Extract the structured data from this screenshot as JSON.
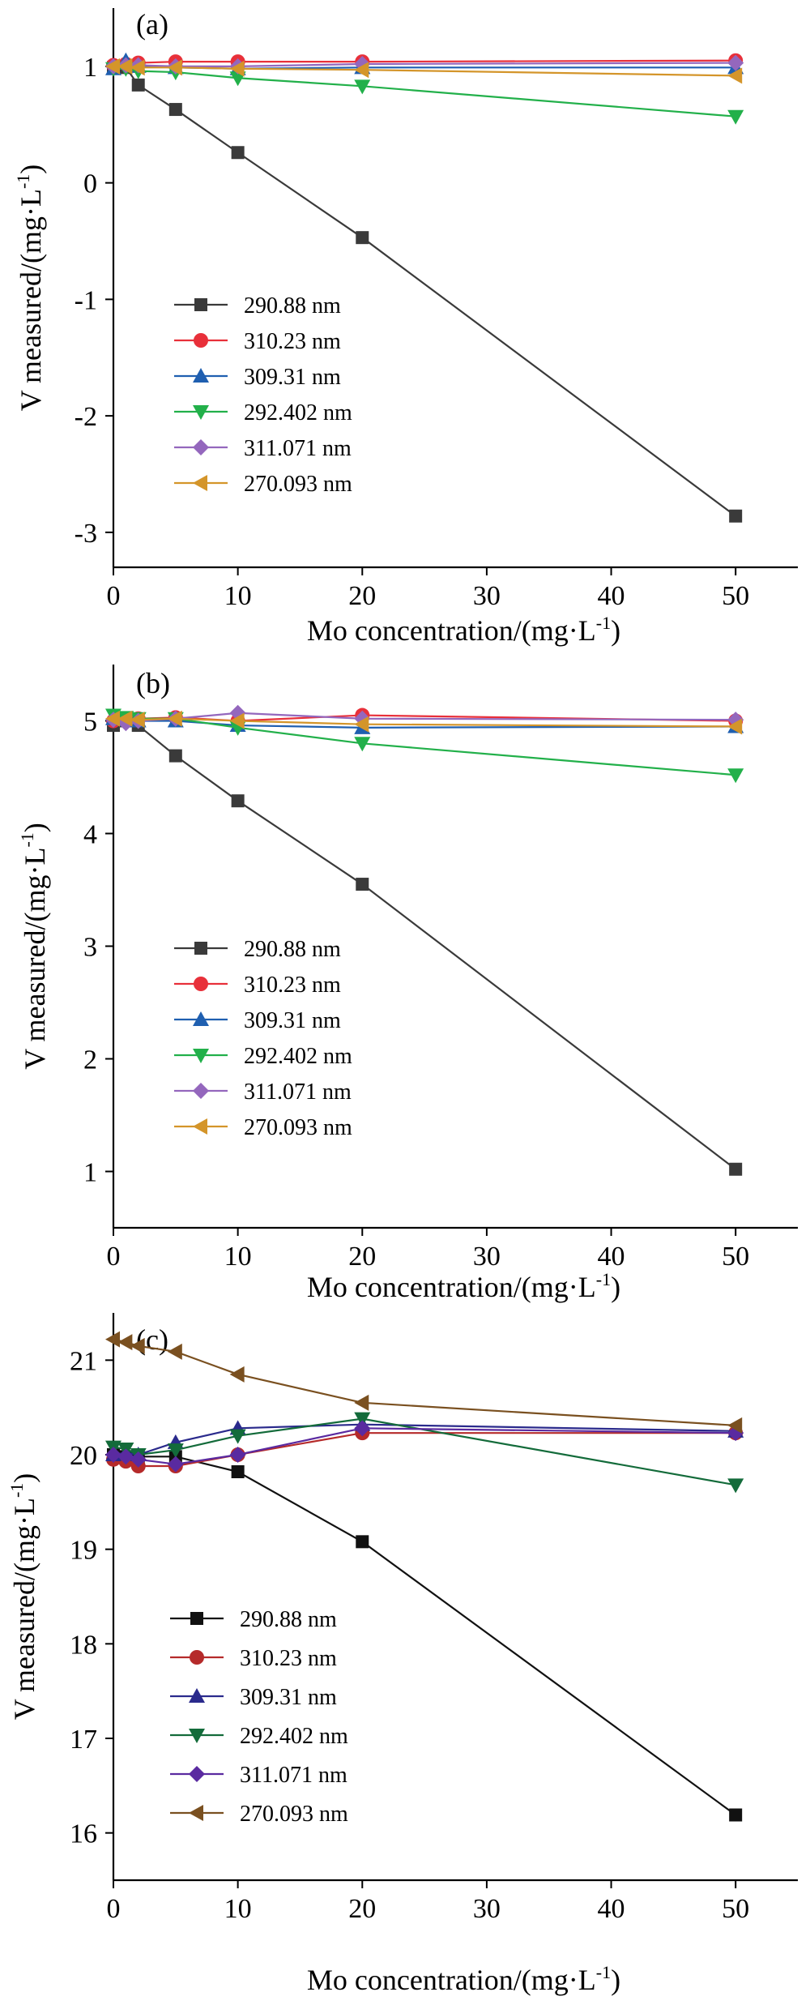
{
  "chart_data": [
    {
      "type": "line",
      "panel_label": "(a)",
      "xlabel": "Mo concentration/(mg·L",
      "xlabel_sup": "-1",
      "xlabel_end": ")",
      "ylabel": "V measured/(mg·L",
      "ylabel_sup": "-1",
      "ylabel_end": ")",
      "xlim": [
        0,
        55
      ],
      "ylim": [
        -3.3,
        1.5
      ],
      "xticks": [
        0,
        10,
        20,
        30,
        40,
        50
      ],
      "xtick_labels": [
        "0",
        "10",
        "20",
        "30",
        "40",
        "50"
      ],
      "yticks": [
        -3,
        -2,
        -1,
        0,
        1
      ],
      "ytick_labels": [
        "-3",
        "-2",
        "-1",
        "0",
        "1"
      ],
      "legend_position": "lower-left",
      "x": [
        0,
        1,
        2,
        5,
        10,
        20,
        50
      ],
      "series": [
        {
          "name": "290.88 nm",
          "color": "#3a3a3a",
          "marker": "square",
          "values": [
            0.99,
            0.99,
            0.84,
            0.63,
            0.26,
            -0.47,
            -2.86
          ]
        },
        {
          "name": "310.23 nm",
          "color": "#e8303a",
          "marker": "circle",
          "values": [
            1.01,
            1.02,
            1.03,
            1.04,
            1.04,
            1.04,
            1.05
          ]
        },
        {
          "name": "309.31 nm",
          "color": "#1f5fb0",
          "marker": "triangle-up",
          "values": [
            0.98,
            1.05,
            1.0,
            0.99,
            0.98,
            0.99,
            0.99
          ]
        },
        {
          "name": "292.402 nm",
          "color": "#22b04a",
          "marker": "triangle-down",
          "values": [
            0.98,
            0.98,
            0.96,
            0.95,
            0.9,
            0.83,
            0.57
          ]
        },
        {
          "name": "311.071 nm",
          "color": "#9467bd",
          "marker": "diamond",
          "values": [
            1.0,
            1.01,
            1.01,
            1.0,
            1.0,
            1.02,
            1.03
          ]
        },
        {
          "name": "270.093 nm",
          "color": "#d4952a",
          "marker": "triangle-left",
          "values": [
            1.0,
            1.0,
            0.99,
            0.99,
            0.98,
            0.97,
            0.92
          ]
        }
      ]
    },
    {
      "type": "line",
      "panel_label": "(b)",
      "xlabel": "Mo concentration/(mg·L",
      "xlabel_sup": "-1",
      "xlabel_end": ")",
      "ylabel": "V measured/(mg·L",
      "ylabel_sup": "-1",
      "ylabel_end": ")",
      "xlim": [
        0,
        55
      ],
      "ylim": [
        0.5,
        5.5
      ],
      "xticks": [
        0,
        10,
        20,
        30,
        40,
        50
      ],
      "xtick_labels": [
        "0",
        "10",
        "20",
        "30",
        "40",
        "50"
      ],
      "yticks": [
        1,
        2,
        3,
        4,
        5
      ],
      "ytick_labels": [
        "1",
        "2",
        "3",
        "4",
        "5"
      ],
      "legend_position": "lower-left",
      "x": [
        0,
        1,
        2,
        5,
        10,
        20,
        50
      ],
      "series": [
        {
          "name": "290.88 nm",
          "color": "#3a3a3a",
          "marker": "square",
          "values": [
            4.96,
            5.0,
            4.96,
            4.69,
            4.29,
            3.55,
            1.02
          ]
        },
        {
          "name": "310.23 nm",
          "color": "#e8303a",
          "marker": "circle",
          "values": [
            5.0,
            5.01,
            5.02,
            5.03,
            5.0,
            5.05,
            5.0
          ]
        },
        {
          "name": "309.31 nm",
          "color": "#1f5fb0",
          "marker": "triangle-up",
          "values": [
            5.02,
            5.01,
            5.0,
            5.0,
            4.96,
            4.94,
            4.95
          ]
        },
        {
          "name": "292.402 nm",
          "color": "#22b04a",
          "marker": "triangle-down",
          "values": [
            5.05,
            5.03,
            5.02,
            5.02,
            4.94,
            4.8,
            4.52
          ]
        },
        {
          "name": "311.071 nm",
          "color": "#9467bd",
          "marker": "diamond",
          "values": [
            5.01,
            4.98,
            5.0,
            5.02,
            5.07,
            5.02,
            5.01
          ]
        },
        {
          "name": "270.093 nm",
          "color": "#d4952a",
          "marker": "triangle-left",
          "values": [
            5.02,
            5.02,
            5.01,
            5.02,
            5.0,
            4.97,
            4.95
          ]
        }
      ]
    },
    {
      "type": "line",
      "panel_label": "(c)",
      "xlabel": "Mo concentration/(mg·L",
      "xlabel_sup": "-1",
      "xlabel_end": ")",
      "ylabel": "V measured/(mg·L",
      "ylabel_sup": "-1",
      "ylabel_end": ")",
      "xlim": [
        0,
        55
      ],
      "ylim": [
        15.5,
        21.5
      ],
      "xticks": [
        0,
        10,
        20,
        30,
        40,
        50
      ],
      "xtick_labels": [
        "0",
        "10",
        "20",
        "30",
        "40",
        "50"
      ],
      "yticks": [
        16,
        17,
        18,
        19,
        20,
        21
      ],
      "ytick_labels": [
        "16",
        "17",
        "18",
        "19",
        "20",
        "21"
      ],
      "legend_position": "lower-left",
      "x": [
        0,
        1,
        2,
        5,
        10,
        20,
        50
      ],
      "series": [
        {
          "name": "290.88 nm",
          "color": "#111111",
          "marker": "square",
          "values": [
            20.0,
            19.98,
            19.98,
            19.98,
            19.82,
            19.08,
            16.19
          ]
        },
        {
          "name": "310.23 nm",
          "color": "#b52a2a",
          "marker": "circle",
          "values": [
            19.95,
            19.93,
            19.88,
            19.88,
            20.0,
            20.23,
            20.23
          ]
        },
        {
          "name": "309.31 nm",
          "color": "#2a2a8c",
          "marker": "triangle-up",
          "values": [
            20.0,
            20.02,
            20.0,
            20.13,
            20.28,
            20.32,
            20.25
          ]
        },
        {
          "name": "292.402 nm",
          "color": "#136b3a",
          "marker": "triangle-down",
          "values": [
            20.08,
            20.06,
            20.0,
            20.05,
            20.2,
            20.38,
            19.68
          ]
        },
        {
          "name": "311.071 nm",
          "color": "#5a2aa0",
          "marker": "diamond",
          "values": [
            20.0,
            19.98,
            19.95,
            19.9,
            20.0,
            20.28,
            20.23
          ]
        },
        {
          "name": "270.093 nm",
          "color": "#7a5020",
          "marker": "triangle-left",
          "values": [
            21.22,
            21.19,
            21.15,
            21.09,
            20.85,
            20.55,
            20.31
          ]
        }
      ]
    }
  ]
}
